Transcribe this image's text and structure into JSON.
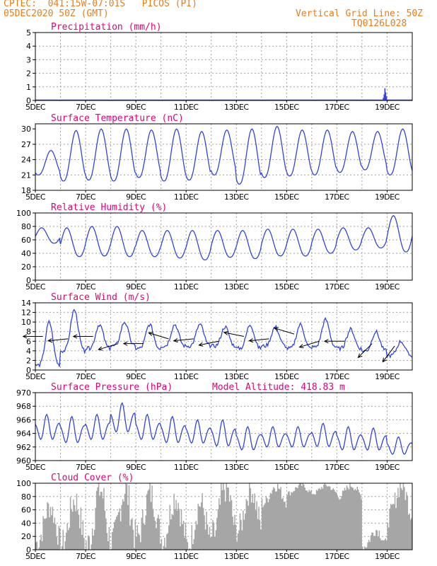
{
  "header": {
    "source": "CPTEC:",
    "location": "041:15W-07:01S   PICOS (PI)",
    "run": "05DEC2020 50Z (GMT)",
    "grid_line": "Vertical Grid Line: 50Z",
    "code": "TQ0126L028"
  },
  "colors": {
    "header": "#e87d1e",
    "title": "#e5007a",
    "line": "#3344dd",
    "bar": "#3344dd",
    "cloud": "#a6a6a6",
    "grid": "#a0a0a0",
    "arrow": "#000000"
  },
  "chart_data": [
    {
      "type": "bar",
      "title": "Precipitation (mm/h)",
      "x_tick_labels": [
        "5DEC",
        "7DEC",
        "9DEC",
        "11DEC",
        "13DEC",
        "15DEC",
        "17DEC",
        "19DEC"
      ],
      "ylim": [
        0,
        5
      ],
      "y_ticks": [
        0,
        1,
        2,
        3,
        4,
        5
      ],
      "x_range_days": [
        5,
        20
      ],
      "values_x": [
        18.8,
        18.83,
        18.86,
        18.89,
        18.92,
        18.95,
        18.98
      ],
      "values": [
        0.05,
        0.2,
        0.45,
        0.9,
        0.6,
        0.3,
        0.05
      ],
      "grid": true
    },
    {
      "type": "line",
      "title": "Surface Temperature (nC)",
      "x_tick_labels": [
        "5DEC",
        "7DEC",
        "9DEC",
        "11DEC",
        "13DEC",
        "15DEC",
        "17DEC",
        "19DEC"
      ],
      "ylim": [
        18,
        31
      ],
      "y_ticks": [
        18,
        21,
        24,
        27,
        30
      ],
      "x_range_days": [
        5,
        20
      ],
      "daily_max": [
        25.8,
        29.7,
        30.0,
        30.0,
        29.8,
        30.0,
        29.5,
        29.8,
        30.0,
        30.5,
        29.8,
        29.8,
        29.5,
        29.5,
        30.0
      ],
      "daily_min": [
        21.0,
        19.8,
        20.0,
        19.8,
        20.5,
        19.8,
        20.0,
        21.0,
        19.2,
        20.5,
        20.8,
        21.0,
        21.5,
        22.0,
        21.0
      ],
      "grid": true
    },
    {
      "type": "line",
      "title": "Relative Humidity (%)",
      "x_tick_labels": [
        "5DEC",
        "7DEC",
        "9DEC",
        "11DEC",
        "13DEC",
        "15DEC",
        "17DEC",
        "19DEC"
      ],
      "ylim": [
        0,
        100
      ],
      "y_ticks": [
        0,
        20,
        40,
        60,
        80,
        100
      ],
      "x_range_days": [
        5,
        20
      ],
      "daily_max": [
        78,
        78,
        80,
        80,
        74,
        74,
        74,
        74,
        74,
        76,
        76,
        76,
        78,
        78,
        96
      ],
      "daily_min": [
        55,
        35,
        36,
        35,
        35,
        33,
        30,
        34,
        32,
        36,
        36,
        40,
        45,
        48,
        42
      ],
      "grid": true
    },
    {
      "type": "line",
      "title": "Surface Wind (m/s)",
      "x_tick_labels": [
        "5DEC",
        "7DEC",
        "9DEC",
        "11DEC",
        "13DEC",
        "15DEC",
        "17DEC",
        "19DEC"
      ],
      "ylim": [
        0,
        14
      ],
      "y_ticks": [
        0,
        2,
        4,
        6,
        8,
        10,
        12,
        14
      ],
      "x_range_days": [
        5,
        20
      ],
      "daily_max": [
        10.0,
        12.5,
        9.5,
        10.0,
        9.5,
        9.5,
        9.5,
        9.0,
        9.5,
        9.0,
        9.5,
        10.5,
        8.5,
        8.0,
        6.0
      ],
      "daily_min": [
        1.0,
        4.0,
        4.5,
        5.0,
        4.5,
        5.0,
        5.0,
        5.0,
        4.5,
        5.0,
        4.5,
        4.8,
        4.5,
        4.0,
        3.0
      ],
      "arrows": [
        {
          "day": 5.3,
          "speed": 7.0,
          "dx": -1,
          "dy": 0.0
        },
        {
          "day": 6.3,
          "speed": 6.5,
          "dx": -1,
          "dy": 0.1
        },
        {
          "day": 7.3,
          "speed": 7.0,
          "dx": -1,
          "dy": 0.0
        },
        {
          "day": 8.3,
          "speed": 5.5,
          "dx": -1,
          "dy": 0.3
        },
        {
          "day": 9.3,
          "speed": 5.5,
          "dx": -1,
          "dy": 0.0
        },
        {
          "day": 10.3,
          "speed": 6.5,
          "dx": -1,
          "dy": -0.3
        },
        {
          "day": 11.3,
          "speed": 6.5,
          "dx": -1,
          "dy": 0.1
        },
        {
          "day": 12.3,
          "speed": 6.0,
          "dx": -1,
          "dy": 0.2
        },
        {
          "day": 13.3,
          "speed": 7.0,
          "dx": -1,
          "dy": -0.2
        },
        {
          "day": 14.3,
          "speed": 6.5,
          "dx": -1,
          "dy": 0.1
        },
        {
          "day": 15.3,
          "speed": 7.5,
          "dx": -1,
          "dy": -0.3
        },
        {
          "day": 16.3,
          "speed": 6.0,
          "dx": -1,
          "dy": 0.3
        },
        {
          "day": 17.3,
          "speed": 6.0,
          "dx": -1,
          "dy": 0.0
        },
        {
          "day": 18.4,
          "speed": 5.5,
          "dx": -0.7,
          "dy": 0.7
        },
        {
          "day": 19.3,
          "speed": 5.0,
          "dx": -0.6,
          "dy": 0.8
        }
      ],
      "grid": true
    },
    {
      "type": "line",
      "title": "Surface Pressure (hPa)",
      "subtitle": "Model Altitude: 418.83 m",
      "x_tick_labels": [
        "5DEC",
        "7DEC",
        "9DEC",
        "11DEC",
        "13DEC",
        "15DEC",
        "17DEC",
        "19DEC"
      ],
      "ylim": [
        960,
        970
      ],
      "y_ticks": [
        960,
        962,
        964,
        966,
        968,
        970
      ],
      "x_range_days": [
        5,
        20
      ],
      "daily_max": [
        966.8,
        966.5,
        966.8,
        968.5,
        966.8,
        966.5,
        966.0,
        966.0,
        965.0,
        965.0,
        965.0,
        965.5,
        965.0,
        964.8,
        963.5
      ],
      "daily_min": [
        962.5,
        962.0,
        962.5,
        963.5,
        962.5,
        962.0,
        962.0,
        961.5,
        961.0,
        961.5,
        961.5,
        961.5,
        961.0,
        961.0,
        960.5
      ],
      "grid": true
    },
    {
      "type": "area",
      "title": "Cloud Cover (%)",
      "x_tick_labels": [
        "5DEC",
        "7DEC",
        "9DEC",
        "11DEC",
        "13DEC",
        "15DEC",
        "17DEC",
        "19DEC"
      ],
      "ylim": [
        0,
        100
      ],
      "y_ticks": [
        0,
        20,
        40,
        60,
        80,
        100
      ],
      "x_range_days": [
        5,
        20
      ],
      "daily_max": [
        65,
        75,
        92,
        90,
        85,
        80,
        70,
        95,
        92,
        96,
        97,
        97,
        97,
        30,
        97
      ],
      "daily_min": [
        10,
        8,
        5,
        12,
        20,
        15,
        5,
        20,
        30,
        70,
        85,
        85,
        80,
        5,
        50
      ],
      "grid": true
    }
  ]
}
